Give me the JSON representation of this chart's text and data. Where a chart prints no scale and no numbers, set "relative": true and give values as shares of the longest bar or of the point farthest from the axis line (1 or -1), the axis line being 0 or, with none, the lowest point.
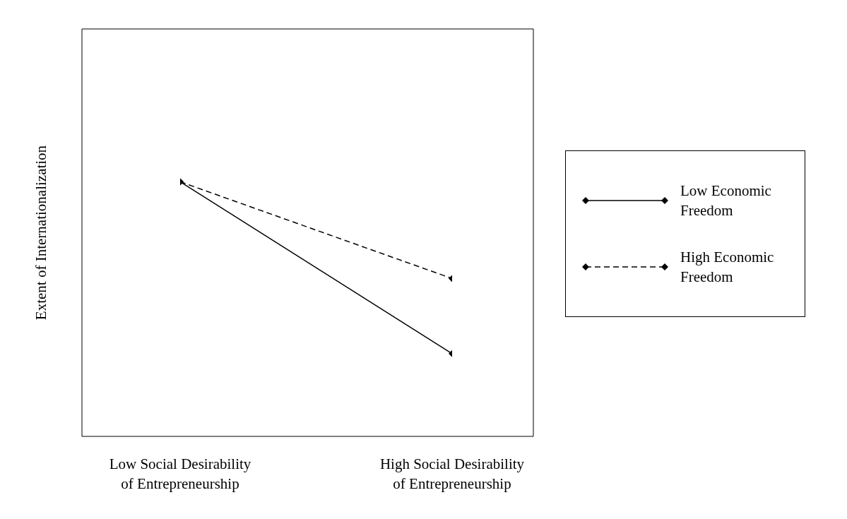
{
  "chart_data": {
    "type": "line",
    "ylabel": "Extent of Internationalization",
    "categories": [
      "Low Social Desirability of Entrepreneurship",
      "High Social Desirability of Entrepreneurship"
    ],
    "relative": true,
    "marker": "diamond",
    "legend": "right",
    "grid": false,
    "series": [
      {
        "name": "Low Economic Freedom",
        "color": "#000000",
        "line_style": "solid",
        "values": [
          1,
          0.325
        ]
      },
      {
        "name": "High Economic Freedom",
        "color": "#000000",
        "line_style": "dashed",
        "values": [
          1,
          0.62
        ]
      }
    ]
  }
}
